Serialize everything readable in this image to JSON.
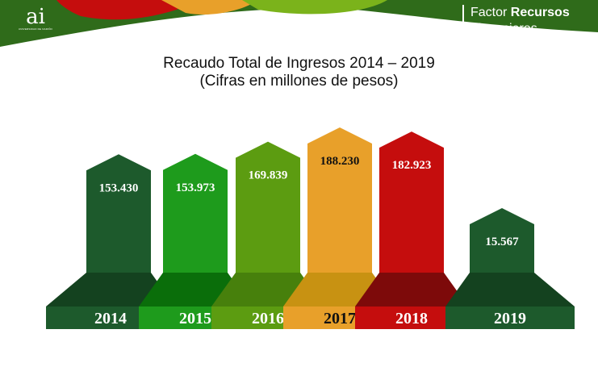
{
  "header": {
    "logo_text": "ai",
    "logo_subtext": "UNIVERSIDAD DE NARIÑO",
    "section_word": "Factor",
    "section_word_bold": "Recursos",
    "section_line2": "Financieros"
  },
  "chart_data": {
    "type": "bar",
    "title": "Recaudo Total de Ingresos 2014 – 2019",
    "subtitle": "(Cifras en millones de pesos)",
    "categories": [
      "2014",
      "2015",
      "2016",
      "2017",
      "2018",
      "2019"
    ],
    "values": [
      153430,
      153973,
      169839,
      188230,
      182923,
      15567
    ],
    "value_labels": [
      "153.430",
      "153.973",
      "169.839",
      "188.230",
      "182.923",
      "15.567"
    ],
    "colors": [
      "#1d5a2c",
      "#1e9b1c",
      "#5c9c11",
      "#e8a02a",
      "#c50d0d",
      "#1d5a2c"
    ],
    "dark_colors": [
      "#14421f",
      "#0a6e0a",
      "#47800c",
      "#c89212",
      "#7d0a0a",
      "#14421f"
    ],
    "label_colors": [
      "#ffffff",
      "#ffffff",
      "#ffffff",
      "#111111",
      "#ffffff",
      "#ffffff"
    ],
    "grid": false,
    "legend": "none"
  }
}
